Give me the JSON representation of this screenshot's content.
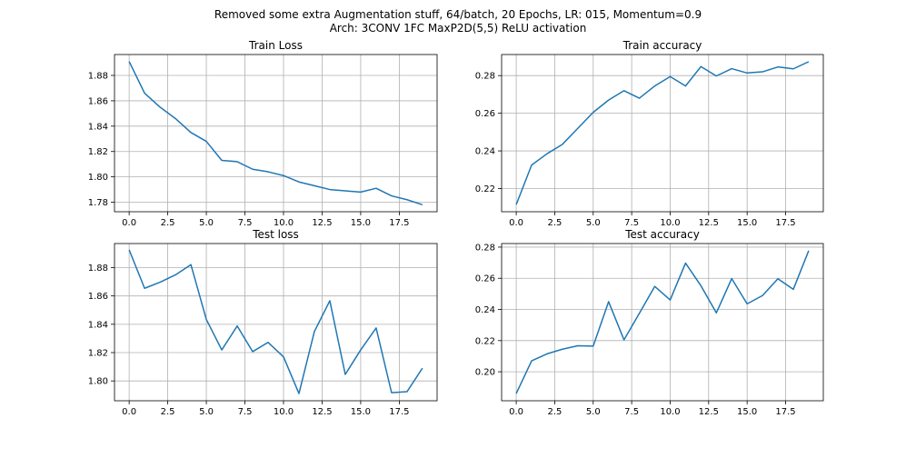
{
  "figure": {
    "suptitle_line1": "Removed some extra Augmentation stuff, 64/batch, 20 Epochs, LR: 015, Momentum=0.9",
    "suptitle_line2": "Arch: 3CONV 1FC MaxP2D(5,5) ReLU activation"
  },
  "colors": {
    "line": "#1f77b4",
    "grid": "#b0b0b0",
    "axis": "#000000"
  },
  "chart_data": [
    {
      "type": "line",
      "title": "Train Loss",
      "xlabel": "",
      "ylabel": "",
      "x": [
        0,
        1,
        2,
        3,
        4,
        5,
        6,
        7,
        8,
        9,
        10,
        11,
        12,
        13,
        14,
        15,
        16,
        17,
        18,
        19
      ],
      "values": [
        1.891,
        1.866,
        1.855,
        1.846,
        1.835,
        1.828,
        1.813,
        1.812,
        1.806,
        1.804,
        1.801,
        1.796,
        1.793,
        1.79,
        1.789,
        1.788,
        1.791,
        1.785,
        1.782,
        1.778
      ],
      "xlim": [
        -0.95,
        19.95
      ],
      "ylim": [
        1.7725,
        1.8965
      ],
      "xticks": [
        0,
        2.5,
        5,
        7.5,
        10,
        12.5,
        15,
        17.5
      ],
      "xtick_labels": [
        "0.0",
        "2.5",
        "5.0",
        "7.5",
        "10.0",
        "12.5",
        "15.0",
        "17.5"
      ],
      "yticks": [
        1.78,
        1.8,
        1.82,
        1.84,
        1.86,
        1.88
      ],
      "ytick_labels": [
        "1.78",
        "1.80",
        "1.82",
        "1.84",
        "1.86",
        "1.88"
      ],
      "grid": true
    },
    {
      "type": "line",
      "title": "Train accuracy",
      "xlabel": "",
      "ylabel": "",
      "x": [
        0,
        1,
        2,
        3,
        4,
        5,
        6,
        7,
        8,
        9,
        10,
        11,
        12,
        13,
        14,
        15,
        16,
        17,
        18,
        19
      ],
      "values": [
        0.2115,
        0.2325,
        0.2385,
        0.2435,
        0.252,
        0.2605,
        0.267,
        0.272,
        0.268,
        0.2745,
        0.2795,
        0.2745,
        0.2848,
        0.2798,
        0.2837,
        0.2814,
        0.282,
        0.2846,
        0.2836,
        0.2874
      ],
      "xlim": [
        -0.95,
        19.95
      ],
      "ylim": [
        0.2077,
        0.2912
      ],
      "xticks": [
        0,
        2.5,
        5,
        7.5,
        10,
        12.5,
        15,
        17.5
      ],
      "xtick_labels": [
        "0.0",
        "2.5",
        "5.0",
        "7.5",
        "10.0",
        "12.5",
        "15.0",
        "17.5"
      ],
      "yticks": [
        0.22,
        0.24,
        0.26,
        0.28
      ],
      "ytick_labels": [
        "0.22",
        "0.24",
        "0.26",
        "0.28"
      ],
      "grid": true
    },
    {
      "type": "line",
      "title": "Test loss",
      "xlabel": "",
      "ylabel": "",
      "x": [
        0,
        1,
        2,
        3,
        4,
        5,
        6,
        7,
        8,
        9,
        10,
        11,
        12,
        13,
        14,
        15,
        16,
        17,
        18,
        19
      ],
      "values": [
        1.8925,
        1.8654,
        1.8697,
        1.8749,
        1.8821,
        1.8434,
        1.8219,
        1.8388,
        1.8207,
        1.8272,
        1.817,
        1.7911,
        1.8349,
        1.8566,
        1.8046,
        1.8219,
        1.8374,
        1.7917,
        1.7924,
        1.809
      ],
      "xlim": [
        -0.95,
        19.95
      ],
      "ylim": [
        1.786,
        1.897
      ],
      "xticks": [
        0,
        2.5,
        5,
        7.5,
        10,
        12.5,
        15,
        17.5
      ],
      "xtick_labels": [
        "0.0",
        "2.5",
        "5.0",
        "7.5",
        "10.0",
        "12.5",
        "15.0",
        "17.5"
      ],
      "yticks": [
        1.8,
        1.82,
        1.84,
        1.86,
        1.88
      ],
      "ytick_labels": [
        "1.80",
        "1.82",
        "1.84",
        "1.86",
        "1.88"
      ],
      "grid": true
    },
    {
      "type": "line",
      "title": "Test accuracy",
      "xlabel": "",
      "ylabel": "",
      "x": [
        0,
        1,
        2,
        3,
        4,
        5,
        6,
        7,
        8,
        9,
        10,
        11,
        12,
        13,
        14,
        15,
        16,
        17,
        18,
        19
      ],
      "values": [
        0.186,
        0.207,
        0.2115,
        0.2145,
        0.2167,
        0.2165,
        0.245,
        0.2205,
        0.2375,
        0.2548,
        0.2461,
        0.2697,
        0.2552,
        0.2378,
        0.2598,
        0.2436,
        0.2489,
        0.2597,
        0.2529,
        0.2777
      ],
      "xlim": [
        -0.95,
        19.95
      ],
      "ylim": [
        0.1814,
        0.2823
      ],
      "xticks": [
        0,
        2.5,
        5,
        7.5,
        10,
        12.5,
        15,
        17.5
      ],
      "xtick_labels": [
        "0.0",
        "2.5",
        "5.0",
        "7.5",
        "10.0",
        "12.5",
        "15.0",
        "17.5"
      ],
      "yticks": [
        0.2,
        0.22,
        0.24,
        0.26,
        0.28
      ],
      "ytick_labels": [
        "0.20",
        "0.22",
        "0.24",
        "0.26",
        "0.28"
      ],
      "grid": true
    }
  ]
}
